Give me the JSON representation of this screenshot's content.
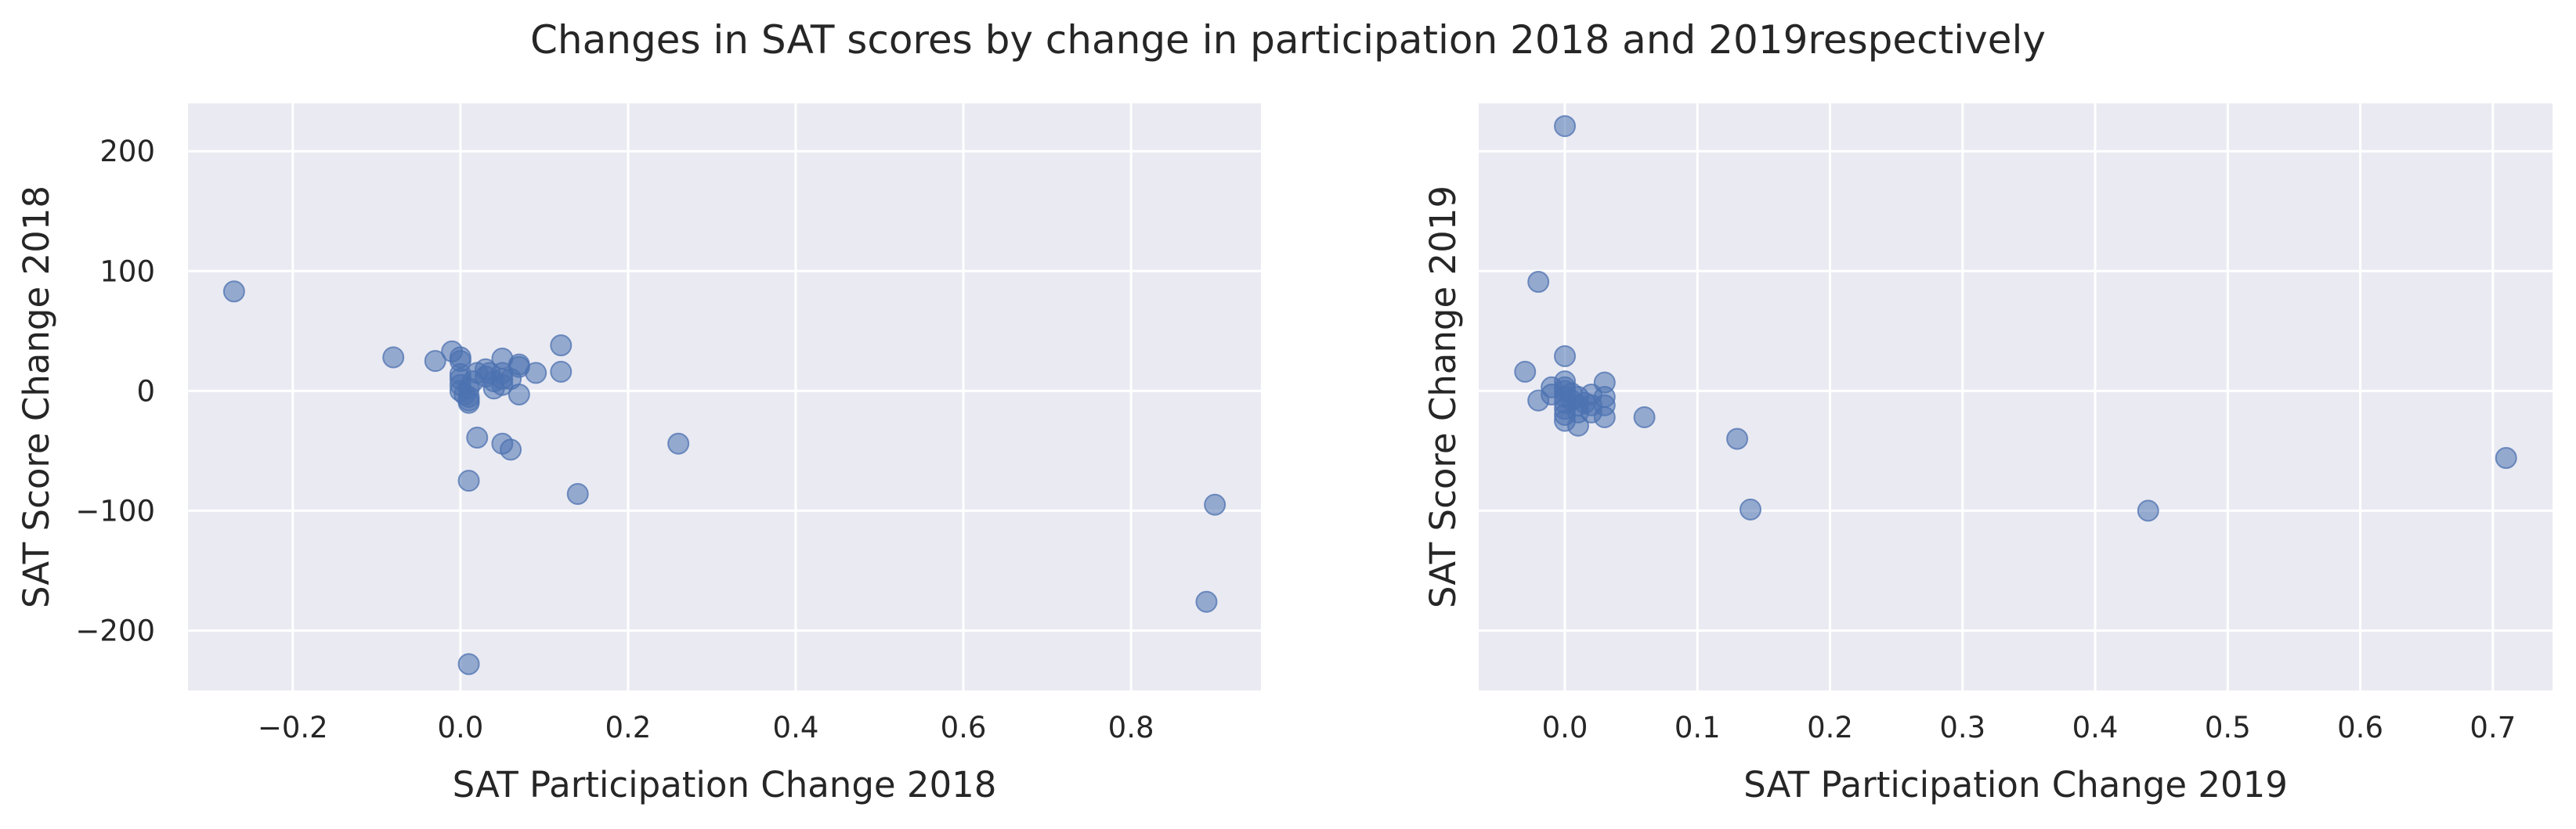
{
  "figure_title": "Changes in SAT scores by change in participation 2018 and 2019respectively",
  "colors": {
    "background": "#EAEAF2",
    "grid": "#FFFFFF",
    "point": "#4C72B0",
    "text": "#262626"
  },
  "chart_data": [
    {
      "type": "scatter",
      "xlabel": "SAT Participation Change 2018",
      "ylabel": "SAT Score Change 2018",
      "xlim": [
        -0.325,
        0.955
      ],
      "ylim": [
        -250,
        240
      ],
      "xticks": [
        -0.2,
        0.0,
        0.2,
        0.4,
        0.6,
        0.8
      ],
      "xtick_labels": [
        "−0.2",
        "0.0",
        "0.2",
        "0.4",
        "0.6",
        "0.8"
      ],
      "yticks": [
        -200,
        -100,
        0,
        100,
        200
      ],
      "ytick_labels": [
        "−200",
        "−100",
        "0",
        "100",
        "200"
      ],
      "grid": true,
      "points": [
        {
          "x": -0.27,
          "y": 83
        },
        {
          "x": -0.08,
          "y": 28
        },
        {
          "x": -0.03,
          "y": 25
        },
        {
          "x": -0.01,
          "y": 33
        },
        {
          "x": 0.0,
          "y": 28
        },
        {
          "x": 0.0,
          "y": 25
        },
        {
          "x": 0.0,
          "y": 14
        },
        {
          "x": 0.0,
          "y": 10
        },
        {
          "x": 0.0,
          "y": 5
        },
        {
          "x": 0.0,
          "y": 0
        },
        {
          "x": 0.005,
          "y": -3
        },
        {
          "x": 0.01,
          "y": 2
        },
        {
          "x": 0.01,
          "y": -5
        },
        {
          "x": 0.01,
          "y": -8
        },
        {
          "x": 0.01,
          "y": -10
        },
        {
          "x": 0.015,
          "y": 8
        },
        {
          "x": 0.02,
          "y": 15
        },
        {
          "x": 0.03,
          "y": 18
        },
        {
          "x": 0.03,
          "y": 12
        },
        {
          "x": 0.035,
          "y": 15
        },
        {
          "x": 0.04,
          "y": 8
        },
        {
          "x": 0.04,
          "y": 2
        },
        {
          "x": 0.05,
          "y": 27
        },
        {
          "x": 0.05,
          "y": 15
        },
        {
          "x": 0.05,
          "y": 10
        },
        {
          "x": 0.05,
          "y": 5
        },
        {
          "x": 0.06,
          "y": 10
        },
        {
          "x": 0.07,
          "y": 22
        },
        {
          "x": 0.07,
          "y": 20
        },
        {
          "x": 0.07,
          "y": -3
        },
        {
          "x": 0.09,
          "y": 15
        },
        {
          "x": 0.12,
          "y": 38
        },
        {
          "x": 0.12,
          "y": 16
        },
        {
          "x": 0.02,
          "y": -39
        },
        {
          "x": 0.05,
          "y": -44
        },
        {
          "x": 0.06,
          "y": -49
        },
        {
          "x": 0.01,
          "y": -75
        },
        {
          "x": 0.14,
          "y": -86
        },
        {
          "x": 0.26,
          "y": -44
        },
        {
          "x": 0.9,
          "y": -95
        },
        {
          "x": 0.89,
          "y": -176
        },
        {
          "x": 0.01,
          "y": -228
        }
      ]
    },
    {
      "type": "scatter",
      "xlabel": "SAT Participation Change 2019",
      "ylabel": "SAT Score Change 2019",
      "xlim": [
        -0.065,
        0.745
      ],
      "ylim": [
        -250,
        240
      ],
      "xticks": [
        0.0,
        0.1,
        0.2,
        0.3,
        0.4,
        0.5,
        0.6,
        0.7
      ],
      "xtick_labels": [
        "0.0",
        "0.1",
        "0.2",
        "0.3",
        "0.4",
        "0.5",
        "0.6",
        "0.7"
      ],
      "yticks": [
        -200,
        -100,
        0,
        100,
        200
      ],
      "ytick_labels": [
        "",
        "",
        "",
        "",
        ""
      ],
      "grid": true,
      "points": [
        {
          "x": 0.0,
          "y": 221
        },
        {
          "x": -0.02,
          "y": 91
        },
        {
          "x": -0.03,
          "y": 16
        },
        {
          "x": -0.02,
          "y": -8
        },
        {
          "x": -0.01,
          "y": 3
        },
        {
          "x": -0.01,
          "y": -3
        },
        {
          "x": 0.0,
          "y": 29
        },
        {
          "x": 0.0,
          "y": 8
        },
        {
          "x": 0.0,
          "y": 3
        },
        {
          "x": 0.0,
          "y": 0
        },
        {
          "x": 0.0,
          "y": -5
        },
        {
          "x": 0.0,
          "y": -10
        },
        {
          "x": 0.0,
          "y": -15
        },
        {
          "x": 0.0,
          "y": -20
        },
        {
          "x": 0.0,
          "y": -25
        },
        {
          "x": 0.005,
          "y": -2
        },
        {
          "x": 0.005,
          "y": -8
        },
        {
          "x": 0.01,
          "y": -5
        },
        {
          "x": 0.01,
          "y": -12
        },
        {
          "x": 0.01,
          "y": -18
        },
        {
          "x": 0.01,
          "y": -29
        },
        {
          "x": 0.015,
          "y": -10
        },
        {
          "x": 0.02,
          "y": -3
        },
        {
          "x": 0.02,
          "y": -12
        },
        {
          "x": 0.02,
          "y": -18
        },
        {
          "x": 0.03,
          "y": 7
        },
        {
          "x": 0.03,
          "y": -5
        },
        {
          "x": 0.03,
          "y": -12
        },
        {
          "x": 0.03,
          "y": -22
        },
        {
          "x": 0.06,
          "y": -22
        },
        {
          "x": 0.13,
          "y": -40
        },
        {
          "x": 0.14,
          "y": -99
        },
        {
          "x": 0.44,
          "y": -100
        },
        {
          "x": 0.71,
          "y": -56
        }
      ]
    }
  ]
}
